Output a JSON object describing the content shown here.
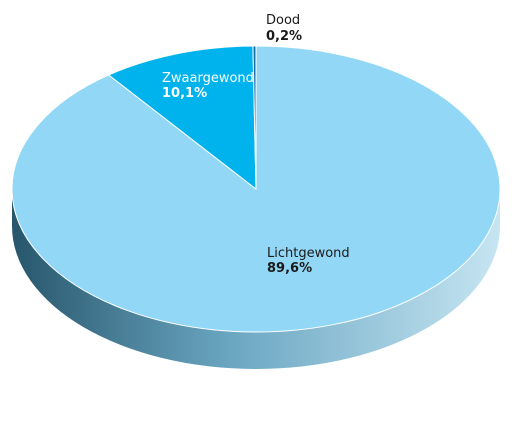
{
  "chart_data": {
    "type": "pie",
    "style": "3d",
    "title": "",
    "slices": [
      {
        "label": "Lichtgewond",
        "value": 89.6,
        "value_text": "89,6%",
        "color": "#92d8f6",
        "label_color": "#1a1a1a"
      },
      {
        "label": "Zwaargewond",
        "value": 10.1,
        "value_text": "10,1%",
        "color": "#00b3ec",
        "label_color": "#ffffff"
      },
      {
        "label": "Dood",
        "value": 0.2,
        "value_text": "0,2%",
        "color": "#1b6fa6",
        "label_color": "#1a1a1a"
      }
    ],
    "side_color_dark": "#27566c",
    "side_color_light": "#c6e5f2"
  }
}
